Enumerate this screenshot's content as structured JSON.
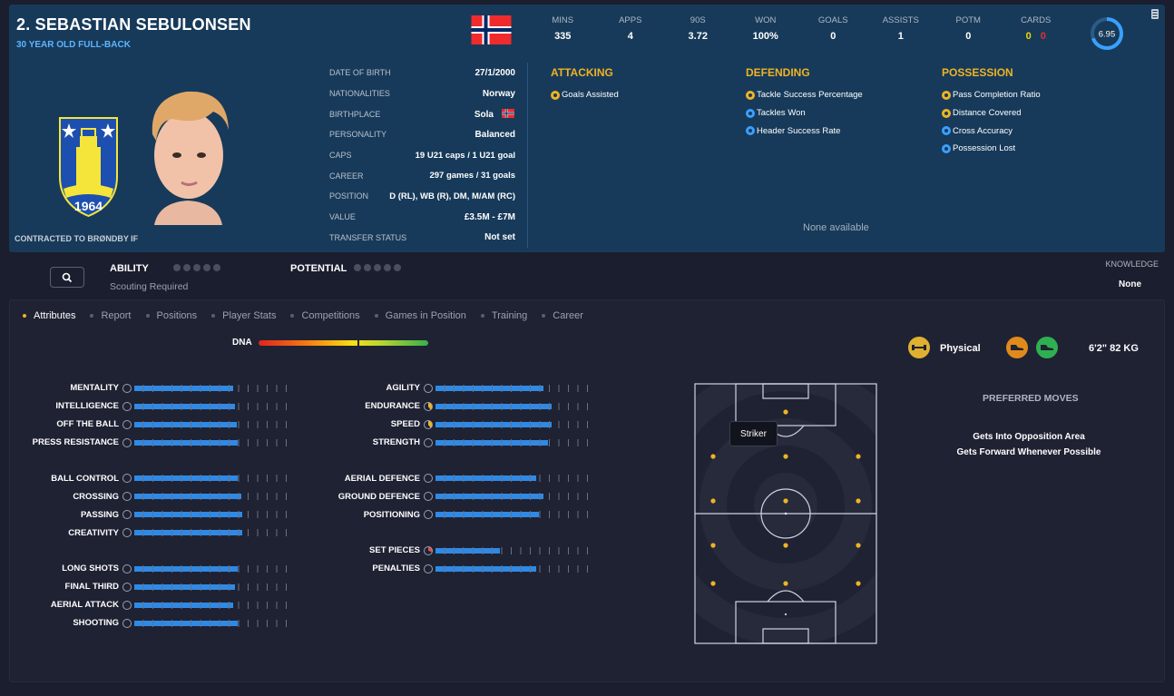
{
  "player": {
    "name": "2. SEBASTIAN SEBULONSEN",
    "subtitle": "30 YEAR OLD FULL-BACK",
    "contract": "CONTRACTED TO BRØNDBY IF",
    "crest_text": "1964"
  },
  "info": [
    {
      "label": "DATE OF BIRTH",
      "value": "27/1/2000"
    },
    {
      "label": "NATIONALITIES",
      "value": "Norway"
    },
    {
      "label": "BIRTHPLACE",
      "value": "Sola"
    },
    {
      "label": "PERSONALITY",
      "value": "Balanced"
    },
    {
      "label": "CAPS",
      "value": "19 U21 caps / 1 U21 goal"
    },
    {
      "label": "CAREER",
      "value": "297 games / 31 goals"
    },
    {
      "label": "POSITION",
      "value": "D (RL), WB (R), DM, M/AM (RC)"
    },
    {
      "label": "VALUE",
      "value": "£3.5M - £7M"
    },
    {
      "label": "TRANSFER STATUS",
      "value": "Not set"
    }
  ],
  "stats": [
    {
      "label": "MINS",
      "value": "335"
    },
    {
      "label": "APPS",
      "value": "4"
    },
    {
      "label": "90S",
      "value": "3.72"
    },
    {
      "label": "WON",
      "value": "100%"
    },
    {
      "label": "GOALS",
      "value": "0"
    },
    {
      "label": "ASSISTS",
      "value": "1"
    },
    {
      "label": "POTM",
      "value": "0"
    }
  ],
  "cards": {
    "label": "CARDS",
    "yellow": "0",
    "red": "0"
  },
  "rating": {
    "value": "6.95",
    "fraction": 0.695
  },
  "traits": {
    "attacking": {
      "title": "ATTACKING",
      "items": [
        {
          "label": "Goals Assisted",
          "color": "gold"
        }
      ]
    },
    "defending": {
      "title": "DEFENDING",
      "items": [
        {
          "label": "Tackle Success Percentage",
          "color": "gold"
        },
        {
          "label": "Tackles Won",
          "color": "blue"
        },
        {
          "label": "Header Success Rate",
          "color": "blue"
        }
      ]
    },
    "possession": {
      "title": "POSSESSION",
      "items": [
        {
          "label": "Pass Completion Ratio",
          "color": "gold"
        },
        {
          "label": "Distance Covered",
          "color": "gold"
        },
        {
          "label": "Cross Accuracy",
          "color": "blue"
        },
        {
          "label": "Possession Lost",
          "color": "blue"
        }
      ]
    },
    "none_text": "None available"
  },
  "ability": {
    "label": "ABILITY",
    "note": "Scouting Required"
  },
  "potential": {
    "label": "POTENTIAL"
  },
  "knowledge": {
    "label": "KNOWLEDGE",
    "value": "None"
  },
  "tabs": [
    "Attributes",
    "Report",
    "Positions",
    "Player Stats",
    "Competitions",
    "Games in Position",
    "Training",
    "Career"
  ],
  "active_tab": "Attributes",
  "dna": {
    "label": "DNA",
    "marker": 0.59
  },
  "physical": {
    "label": "Physical",
    "height_weight": "6'2\"   82 KG"
  },
  "attributes": {
    "left": [
      [
        {
          "name": "MENTALITY",
          "v": 0.65
        },
        {
          "name": "INTELLIGENCE",
          "v": 0.66
        },
        {
          "name": "OFF THE BALL",
          "v": 0.67
        },
        {
          "name": "PRESS RESISTANCE",
          "v": 0.68
        }
      ],
      [
        {
          "name": "BALL CONTROL",
          "v": 0.68
        },
        {
          "name": "CROSSING",
          "v": 0.7
        },
        {
          "name": "PASSING",
          "v": 0.71
        },
        {
          "name": "CREATIVITY",
          "v": 0.71
        }
      ],
      [
        {
          "name": "LONG SHOTS",
          "v": 0.68
        },
        {
          "name": "FINAL THIRD",
          "v": 0.66
        },
        {
          "name": "AERIAL ATTACK",
          "v": 0.65
        },
        {
          "name": "SHOOTING",
          "v": 0.68
        }
      ]
    ],
    "right": [
      [
        {
          "name": "AGILITY",
          "v": 0.71,
          "icon": "plain"
        },
        {
          "name": "ENDURANCE",
          "v": 0.76,
          "icon": "yellow"
        },
        {
          "name": "SPEED",
          "v": 0.76,
          "icon": "yellow"
        },
        {
          "name": "STRENGTH",
          "v": 0.74,
          "icon": "plain"
        }
      ],
      [
        {
          "name": "AERIAL DEFENCE",
          "v": 0.66,
          "icon": "plain"
        },
        {
          "name": "GROUND DEFENCE",
          "v": 0.71,
          "icon": "plain"
        },
        {
          "name": "POSITIONING",
          "v": 0.68,
          "icon": "plain"
        }
      ],
      [
        {
          "name": "SET PIECES",
          "v": 0.42,
          "icon": "red"
        },
        {
          "name": "PENALTIES",
          "v": 0.66,
          "icon": "plain"
        }
      ]
    ]
  },
  "pitch": {
    "tooltip": "Striker"
  },
  "preferred_moves": {
    "title": "PREFERRED MOVES",
    "items": [
      "Gets Into Opposition Area",
      "Gets Forward Whenever Possible"
    ]
  }
}
